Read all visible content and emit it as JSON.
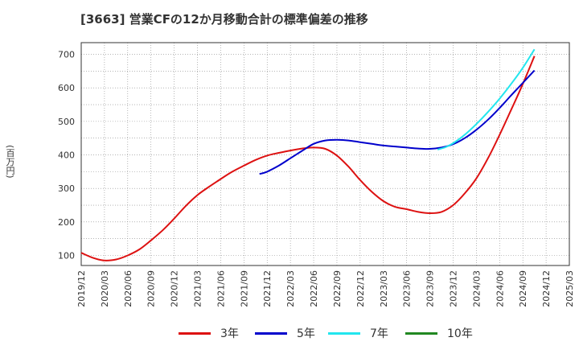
{
  "chart_data": {
    "type": "line",
    "title": "[3663]  営業CFの12か月移動合計の標準偏差の推移",
    "ylabel": "(百万円)",
    "xlabel": "",
    "ylim": [
      70,
      735
    ],
    "yticks": [
      100,
      200,
      300,
      400,
      500,
      600,
      700
    ],
    "xticks": [
      "2019/12",
      "2020/03",
      "2020/06",
      "2020/09",
      "2020/12",
      "2021/03",
      "2021/06",
      "2021/09",
      "2021/12",
      "2022/03",
      "2022/06",
      "2022/09",
      "2022/12",
      "2023/03",
      "2023/06",
      "2023/09",
      "2023/12",
      "2024/03",
      "2024/06",
      "2024/09",
      "2024/12",
      "2025/03"
    ],
    "grid": true,
    "legend_position": "bottom",
    "series": [
      {
        "name": "3年",
        "color": "#dd1111",
        "points": [
          [
            0,
            108
          ],
          [
            0.5,
            93
          ],
          [
            1,
            85
          ],
          [
            1.5,
            88
          ],
          [
            2,
            100
          ],
          [
            2.5,
            118
          ],
          [
            3,
            145
          ],
          [
            3.5,
            175
          ],
          [
            4,
            210
          ],
          [
            4.5,
            248
          ],
          [
            5,
            280
          ],
          [
            5.5,
            305
          ],
          [
            6,
            328
          ],
          [
            6.5,
            350
          ],
          [
            7,
            368
          ],
          [
            7.5,
            385
          ],
          [
            8,
            398
          ],
          [
            8.5,
            406
          ],
          [
            9,
            413
          ],
          [
            9.5,
            419
          ],
          [
            10,
            422
          ],
          [
            10.5,
            418
          ],
          [
            11,
            398
          ],
          [
            11.5,
            365
          ],
          [
            12,
            325
          ],
          [
            12.5,
            290
          ],
          [
            13,
            262
          ],
          [
            13.5,
            245
          ],
          [
            14,
            238
          ],
          [
            14.5,
            230
          ],
          [
            15,
            226
          ],
          [
            15.5,
            230
          ],
          [
            16,
            250
          ],
          [
            16.5,
            285
          ],
          [
            17,
            330
          ],
          [
            17.5,
            390
          ],
          [
            18,
            460
          ],
          [
            18.5,
            535
          ],
          [
            19,
            612
          ],
          [
            19.5,
            695
          ]
        ]
      },
      {
        "name": "5年",
        "color": "#0000cc",
        "points": [
          [
            7.67,
            343
          ],
          [
            8,
            350
          ],
          [
            8.5,
            368
          ],
          [
            9,
            390
          ],
          [
            9.5,
            412
          ],
          [
            10,
            433
          ],
          [
            10.5,
            443
          ],
          [
            11,
            445
          ],
          [
            11.5,
            443
          ],
          [
            12,
            438
          ],
          [
            12.5,
            433
          ],
          [
            13,
            428
          ],
          [
            13.5,
            425
          ],
          [
            14,
            422
          ],
          [
            14.5,
            419
          ],
          [
            15,
            418
          ],
          [
            15.5,
            422
          ],
          [
            16,
            432
          ],
          [
            16.5,
            450
          ],
          [
            17,
            475
          ],
          [
            17.5,
            505
          ],
          [
            18,
            540
          ],
          [
            18.5,
            578
          ],
          [
            19,
            615
          ],
          [
            19.5,
            652
          ]
        ]
      },
      {
        "name": "7年",
        "color": "#22e6ee",
        "points": [
          [
            15.33,
            416
          ],
          [
            15.67,
            423
          ],
          [
            16,
            435
          ],
          [
            16.5,
            460
          ],
          [
            17,
            492
          ],
          [
            17.5,
            528
          ],
          [
            18,
            568
          ],
          [
            18.5,
            612
          ],
          [
            19,
            660
          ],
          [
            19.5,
            715
          ]
        ]
      },
      {
        "name": "10年",
        "color": "#228822",
        "points": []
      }
    ]
  }
}
